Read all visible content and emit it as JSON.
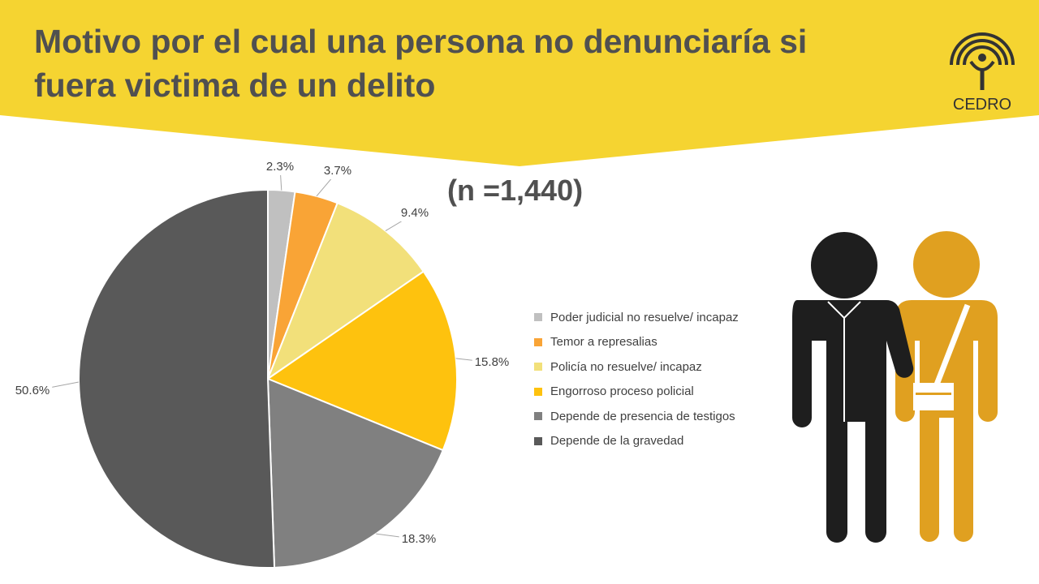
{
  "title": "Motivo por el cual una persona no denunciaría si\nfuera  victima de un delito",
  "sample_size": "(n =1,440)",
  "logo": {
    "text": "CEDRO",
    "icon": "cedro-logo-icon"
  },
  "colors": {
    "banner": "#F5D431",
    "title_text": "#505050"
  },
  "chart_data": {
    "type": "pie",
    "title": "",
    "legend_position": "right",
    "slices": [
      {
        "label": "Poder judicial no resuelve/ incapaz",
        "value": 2.3,
        "display": "2.3%",
        "color": "#C0C0C0"
      },
      {
        "label": "Temor a represalias",
        "value": 3.7,
        "display": "3.7%",
        "color": "#F9A436"
      },
      {
        "label": "Policía no resuelve/ incapaz",
        "value": 9.4,
        "display": "9.4%",
        "color": "#F2E07A"
      },
      {
        "label": "Engorroso proceso policial",
        "value": 15.8,
        "display": "15.8%",
        "color": "#FEC20E"
      },
      {
        "label": "Depende de presencia de testigos",
        "value": 18.3,
        "display": "18.3%",
        "color": "#808080"
      },
      {
        "label": "Depende de la gravedad",
        "value": 50.6,
        "display": "50.6%",
        "color": "#595959"
      }
    ]
  },
  "illustration": {
    "icon": "two-people-icon",
    "colors": [
      "#1E1E1E",
      "#E0A020"
    ]
  }
}
